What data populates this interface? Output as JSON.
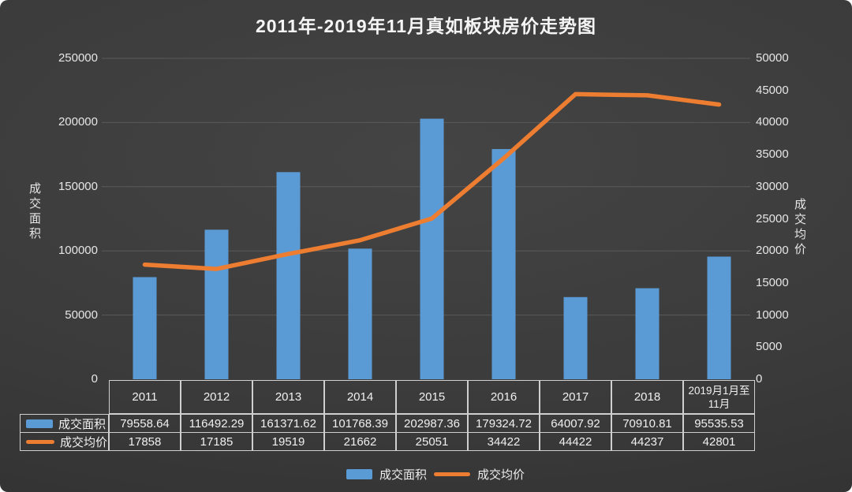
{
  "title": "2011年-2019年11月真如板块房价走势图",
  "chart_data": {
    "type": "combo-bar-line",
    "categories": [
      "2011",
      "2012",
      "2013",
      "2014",
      "2015",
      "2016",
      "2017",
      "2018",
      "2019月1月至11月"
    ],
    "series": [
      {
        "name": "成交面积",
        "chart": "bar",
        "axis": "left",
        "color": "#5B9BD5",
        "values": [
          79558.64,
          116492.29,
          161371.62,
          101768.39,
          202987.36,
          179324.72,
          64007.92,
          70910.81,
          95535.53
        ]
      },
      {
        "name": "成交均价",
        "chart": "line",
        "axis": "right",
        "color": "#ED7D31",
        "values": [
          17858,
          17185,
          19519,
          21662,
          25051,
          34422,
          44422,
          44237,
          42801
        ]
      }
    ],
    "left_axis": {
      "label": "成交面积",
      "min": 0,
      "max": 250000,
      "step": 50000,
      "tick_labels": [
        "250000",
        "200000",
        "150000",
        "100000",
        "50000",
        "0"
      ]
    },
    "right_axis": {
      "label": "成交均价",
      "min": 0,
      "max": 50000,
      "step": 5000,
      "tick_labels": [
        "50000",
        "45000",
        "40000",
        "35000",
        "30000",
        "25000",
        "20000",
        "15000",
        "10000",
        "5000",
        "0"
      ]
    },
    "grid": true,
    "legend_position": "bottom",
    "colors": {
      "background": "#3b3b3b",
      "gridline": "#5a5a5a",
      "text": "#ededed",
      "table_border": "#cfcfcf"
    }
  },
  "legend": {
    "items": [
      {
        "label": "成交面积",
        "color": "#5B9BD5",
        "shape": "bar"
      },
      {
        "label": "成交均价",
        "color": "#ED7D31",
        "shape": "line"
      }
    ]
  }
}
